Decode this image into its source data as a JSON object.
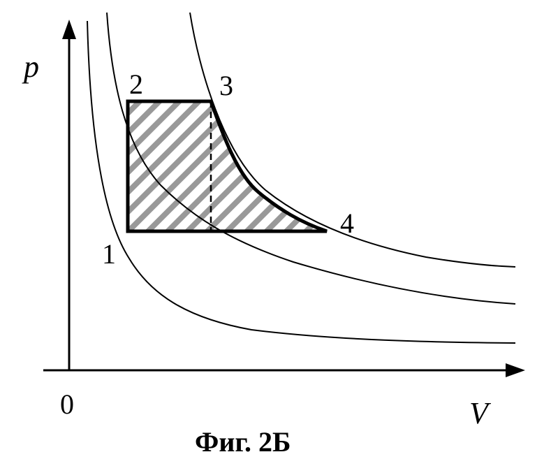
{
  "axes": {
    "y_label": "p",
    "x_label": "V",
    "origin_label": "0"
  },
  "points": {
    "p1": "1",
    "p2": "2",
    "p3": "3",
    "p4": "4"
  },
  "caption": "Фиг. 2Б",
  "colors": {
    "ink": "#000000",
    "hatch": "#999999",
    "background": "#ffffff"
  }
}
